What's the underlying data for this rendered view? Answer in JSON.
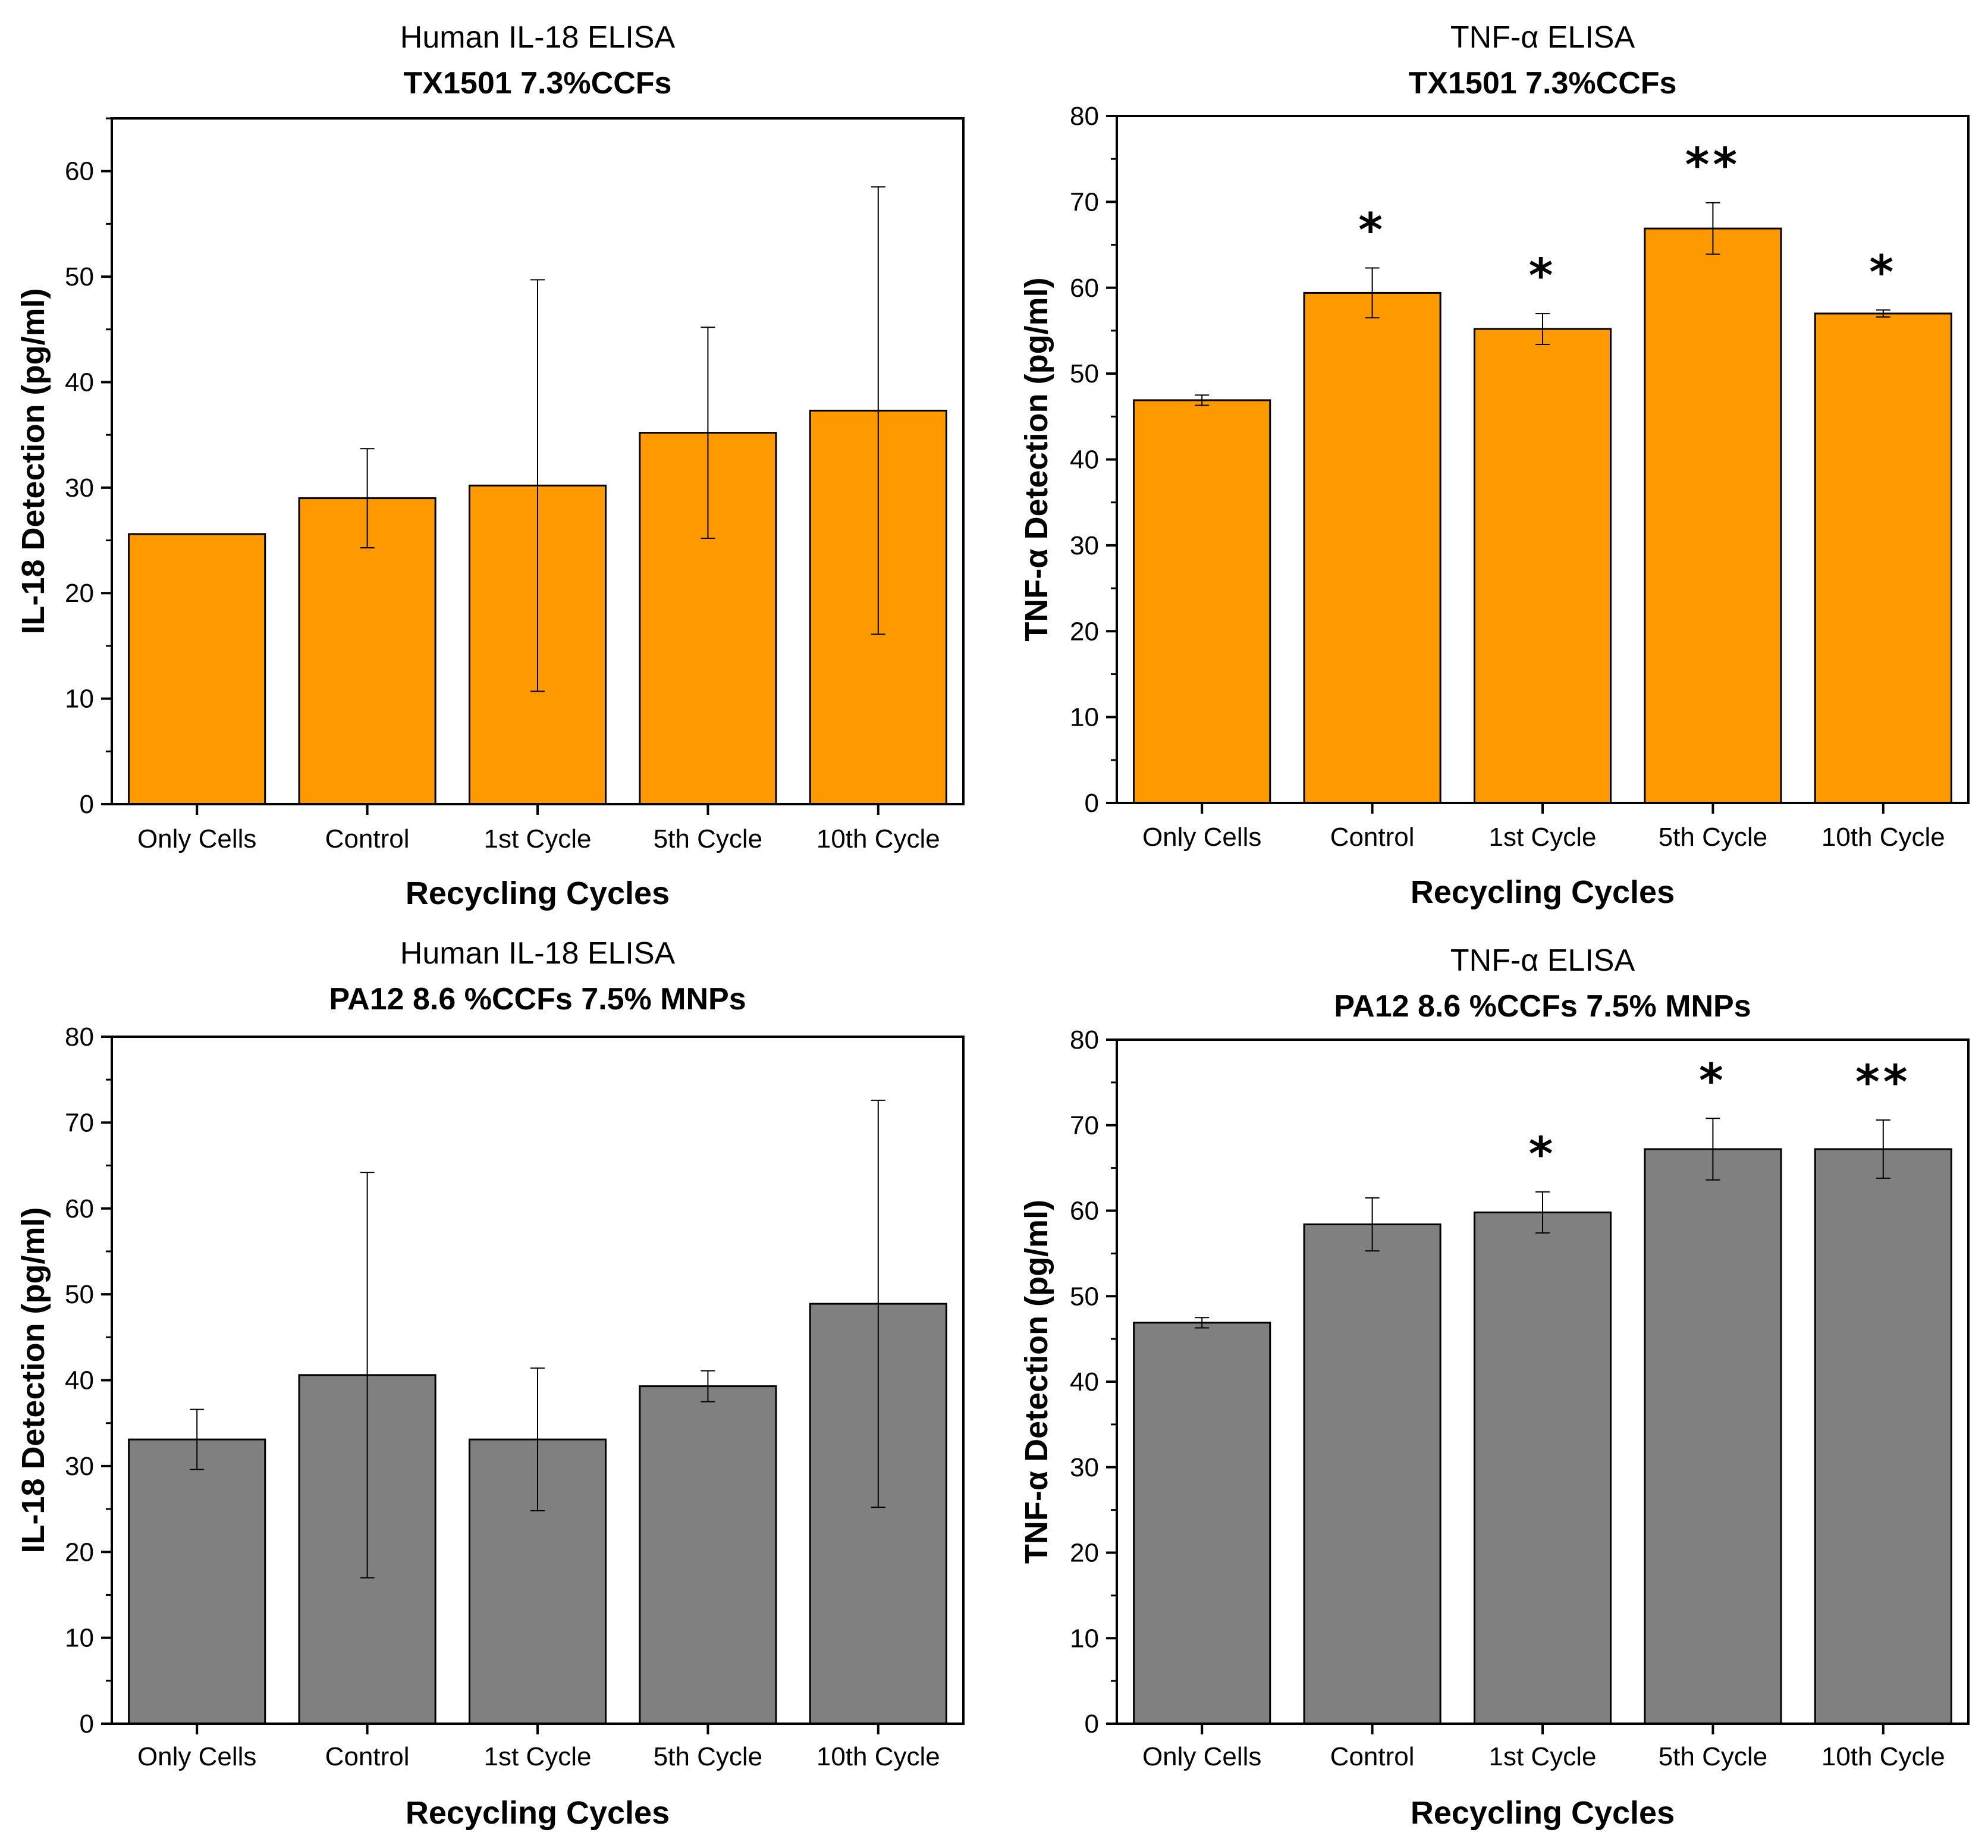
{
  "chart_data": [
    {
      "type": "bar",
      "title": "Human IL-18 ELISA",
      "subtitle": "TX1501 7.3%CCFs",
      "xlabel": "Recycling Cycles",
      "ylabel": "IL-18 Detection (pg/ml)",
      "ylim": [
        0,
        65
      ],
      "yticks": [
        0,
        10,
        20,
        30,
        40,
        50,
        60
      ],
      "grid": false,
      "categories": [
        "Only Cells",
        "Control",
        "1st Cycle",
        "5th Cycle",
        "10th Cycle"
      ],
      "values": [
        25.6,
        29.0,
        30.2,
        35.2,
        37.3
      ],
      "errors": [
        0,
        4.7,
        19.5,
        10.0,
        21.2
      ],
      "significance": [
        "",
        "",
        "",
        "",
        ""
      ],
      "bar_color": "#FF9900"
    },
    {
      "type": "bar",
      "title": "TNF-α ELISA",
      "subtitle": "TX1501 7.3%CCFs",
      "xlabel": "Recycling Cycles",
      "ylabel": "TNF-α Detection (pg/ml)",
      "ylim": [
        0,
        80
      ],
      "yticks": [
        0,
        10,
        20,
        30,
        40,
        50,
        60,
        70,
        80
      ],
      "grid": false,
      "categories": [
        "Only Cells",
        "Control",
        "1st Cycle",
        "5th Cycle",
        "10th Cycle"
      ],
      "values": [
        46.9,
        59.4,
        55.2,
        66.9,
        57.0
      ],
      "errors": [
        0.6,
        2.9,
        1.8,
        3.0,
        0.4
      ],
      "significance": [
        "",
        "*",
        "*",
        "**",
        "*"
      ],
      "bar_color": "#FF9900"
    },
    {
      "type": "bar",
      "title": "Human IL-18 ELISA",
      "subtitle": "PA12 8.6 %CCFs 7.5% MNPs",
      "xlabel": "Recycling Cycles",
      "ylabel": "IL-18 Detection (pg/ml)",
      "ylim": [
        0,
        80
      ],
      "yticks": [
        0,
        10,
        20,
        30,
        40,
        50,
        60,
        70,
        80
      ],
      "grid": false,
      "categories": [
        "Only Cells",
        "Control",
        "1st Cycle",
        "5th Cycle",
        "10th Cycle"
      ],
      "values": [
        33.1,
        40.6,
        33.1,
        39.3,
        48.9
      ],
      "errors": [
        3.5,
        23.6,
        8.3,
        1.8,
        23.7
      ],
      "significance": [
        "",
        "",
        "",
        "",
        ""
      ],
      "bar_color": "#808080"
    },
    {
      "type": "bar",
      "title": "TNF-α ELISA",
      "subtitle": "PA12 8.6 %CCFs 7.5% MNPs",
      "xlabel": "Recycling Cycles",
      "ylabel": "TNF-α Detection (pg/ml)",
      "ylim": [
        0,
        80
      ],
      "yticks": [
        0,
        10,
        20,
        30,
        40,
        50,
        60,
        70,
        80
      ],
      "grid": false,
      "categories": [
        "Only Cells",
        "Control",
        "1st Cycle",
        "5th Cycle",
        "10th Cycle"
      ],
      "values": [
        46.9,
        58.4,
        59.8,
        67.2,
        67.2
      ],
      "errors": [
        0.6,
        3.1,
        2.4,
        3.6,
        3.4
      ],
      "significance": [
        "",
        "",
        "*",
        "*",
        "**"
      ],
      "bar_color": "#808080"
    }
  ]
}
